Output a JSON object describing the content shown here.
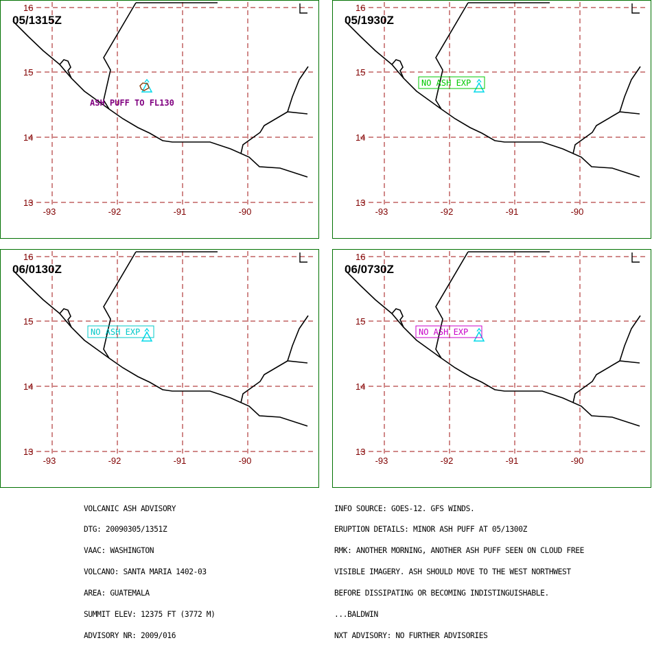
{
  "map": {
    "lat_ticks": [
      "16",
      "15",
      "14",
      "13"
    ],
    "lon_ticks": [
      "-93",
      "-92",
      "-91",
      "-90"
    ],
    "colors": {
      "grid": "#a01010",
      "coast": "#000000",
      "frame": "#007000",
      "volcano": "#00d8e8"
    },
    "volcano_icon": "triangle-volcano-icon"
  },
  "panels": [
    {
      "time": "05/1315Z",
      "label": "ASH PUFF TO FL130",
      "label_color": "#800080",
      "boxed": false,
      "ash_polygon": true
    },
    {
      "time": "05/1930Z",
      "label": "NO ASH EXP",
      "label_color": "#00c800",
      "boxed": true,
      "ash_polygon": false
    },
    {
      "time": "06/0130Z",
      "label": "NO ASH EXP",
      "label_color": "#00c8c8",
      "boxed": true,
      "ash_polygon": false
    },
    {
      "time": "06/0730Z",
      "label": "NO ASH EXP",
      "label_color": "#c800c8",
      "boxed": true,
      "ash_polygon": false
    }
  ],
  "advisory_left": [
    "VOLCANIC ASH ADVISORY",
    "DTG: 20090305/1351Z",
    "VAAC: WASHINGTON",
    "VOLCANO: SANTA MARIA 1402-03",
    "AREA: GUATEMALA",
    "SUMMIT ELEV: 12375 FT (3772 M)",
    "ADVISORY NR: 2009/016"
  ],
  "advisory_right": [
    "INFO SOURCE: GOES-12. GFS WINDS.",
    "ERUPTION DETAILS: MINOR ASH PUFF AT 05/1300Z",
    "RMK: ANOTHER MORNING, ANOTHER ASH PUFF SEEN ON CLOUD FREE",
    "VISIBLE IMAGERY. ASH SHOULD MOVE TO THE WEST NORTHWEST",
    "BEFORE DISSIPATING OR BECOMING INDISTINGUISHABLE.",
    "...BALDWIN",
    "NXT ADVISORY: NO FURTHER ADVISORIES"
  ]
}
